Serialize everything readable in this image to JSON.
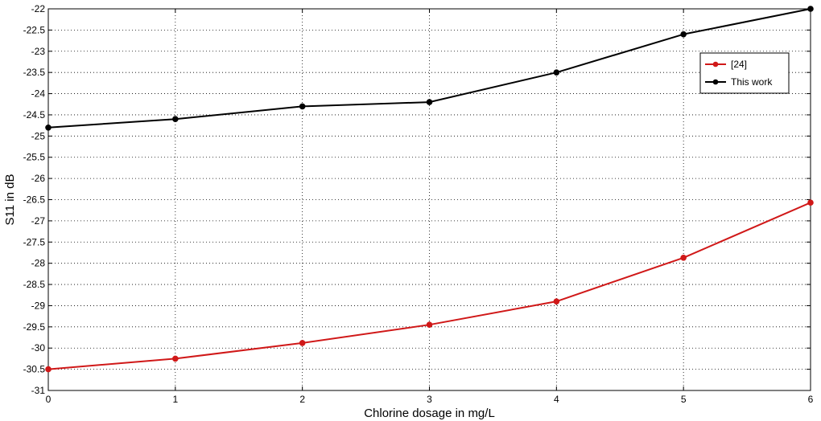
{
  "chart_data": {
    "type": "line",
    "title": "",
    "xlabel": "Chlorine dosage in mg/L",
    "ylabel": "S11 in dB",
    "x": [
      0,
      1,
      2,
      3,
      4,
      5,
      6
    ],
    "xlim": [
      0,
      6
    ],
    "ylim": [
      -31,
      -22
    ],
    "x_ticks": [
      "0",
      "1",
      "2",
      "3",
      "4",
      "5",
      "6"
    ],
    "y_ticks": [
      "-22",
      "-22.5",
      "-23",
      "-23.5",
      "-24",
      "-24.5",
      "-25",
      "-25.5",
      "-26",
      "-26.5",
      "-27",
      "-27.5",
      "-28",
      "-28.5",
      "-29",
      "-29.5",
      "-30",
      "-30.5",
      "-31"
    ],
    "grid": true,
    "legend_position": "top-right",
    "series": [
      {
        "name": "[24]",
        "color": "#d01818",
        "values": [
          -30.5,
          -30.25,
          -29.88,
          -29.45,
          -28.9,
          -27.87,
          -26.57
        ]
      },
      {
        "name": "This work",
        "color": "#000000",
        "values": [
          -24.8,
          -24.6,
          -24.3,
          -24.2,
          -23.5,
          -22.6,
          -22.0
        ]
      }
    ]
  }
}
